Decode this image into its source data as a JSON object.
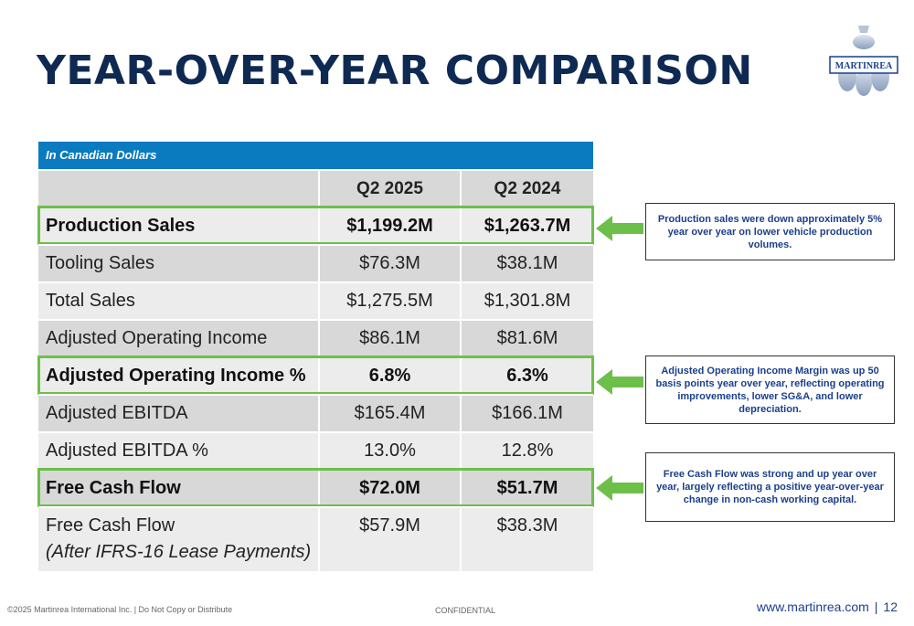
{
  "title": "YEAR-OVER-YEAR COMPARISON",
  "logo": {
    "text": "MARTINREA"
  },
  "table": {
    "caption": "In Canadian Dollars",
    "headers": [
      "",
      "Q2 2025",
      "Q2 2024"
    ],
    "rows": [
      {
        "label": "Production Sales",
        "q2_2025": "$1,199.2M",
        "q2_2024": "$1,263.7M",
        "highlight": true
      },
      {
        "label": "Tooling Sales",
        "q2_2025": "$76.3M",
        "q2_2024": "$38.1M",
        "highlight": false
      },
      {
        "label": "Total Sales",
        "q2_2025": "$1,275.5M",
        "q2_2024": "$1,301.8M",
        "highlight": false
      },
      {
        "label": "Adjusted Operating Income",
        "q2_2025": "$86.1M",
        "q2_2024": "$81.6M",
        "highlight": false
      },
      {
        "label": "Adjusted Operating Income %",
        "q2_2025": "6.8%",
        "q2_2024": "6.3%",
        "highlight": true
      },
      {
        "label": "Adjusted EBITDA",
        "q2_2025": "$165.4M",
        "q2_2024": "$166.1M",
        "highlight": false
      },
      {
        "label": "Adjusted EBITDA %",
        "q2_2025": "13.0%",
        "q2_2024": "12.8%",
        "highlight": false
      },
      {
        "label": "Free Cash Flow",
        "q2_2025": "$72.0M",
        "q2_2024": "$51.7M",
        "highlight": true
      },
      {
        "label": "Free Cash Flow",
        "sublabel": "(After IFRS-16 Lease Payments)",
        "q2_2025": "$57.9M",
        "q2_2024": "$38.3M",
        "highlight": false
      }
    ]
  },
  "notes": [
    "Production sales were down approximately 5% year over year on lower vehicle production volumes.",
    "Adjusted Operating Income Margin was up 50 basis points year over year, reflecting operating improvements, lower SG&A, and lower depreciation.",
    "Free Cash Flow was strong and up year over year, largely reflecting a positive year-over-year change in non-cash working capital."
  ],
  "footer": {
    "copyright": "©2025 Martinrea International Inc. | Do Not Copy or Distribute",
    "confidential": "CONFIDENTIAL",
    "website": "www.martinrea.com",
    "separator": "|",
    "page_number": "12"
  },
  "colors": {
    "title": "#0f2a52",
    "caption_bar": "#0b7bc0",
    "highlight": "#6cc04a",
    "note_text": "#1b3f8b"
  }
}
